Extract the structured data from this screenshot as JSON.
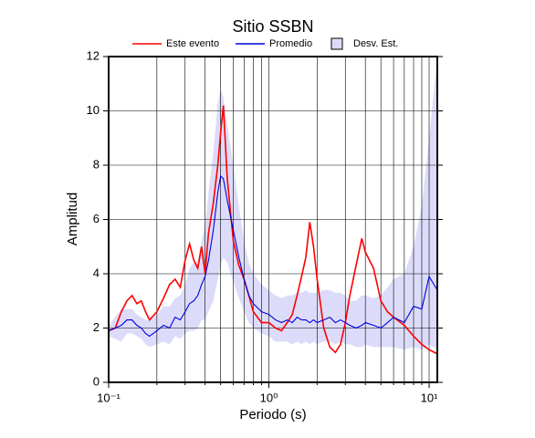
{
  "chart_data": {
    "type": "line",
    "title": "Sitio SSBN",
    "xlabel": "Periodo (s)",
    "ylabel": "Amplitud",
    "xscale": "log",
    "grid": true,
    "legend": "top",
    "x": [
      0.1,
      0.11,
      0.12,
      0.13,
      0.14,
      0.15,
      0.16,
      0.17,
      0.18,
      0.2,
      0.22,
      0.24,
      0.26,
      0.28,
      0.3,
      0.32,
      0.34,
      0.36,
      0.38,
      0.4,
      0.42,
      0.45,
      0.48,
      0.5,
      0.52,
      0.55,
      0.6,
      0.65,
      0.7,
      0.75,
      0.8,
      0.9,
      1.0,
      1.1,
      1.2,
      1.3,
      1.4,
      1.5,
      1.6,
      1.7,
      1.8,
      1.9,
      2.0,
      2.2,
      2.4,
      2.6,
      2.8,
      3.0,
      3.2,
      3.5,
      3.8,
      4.0,
      4.5,
      5.0,
      5.5,
      6,
      7,
      8,
      9,
      10,
      11.25
    ],
    "series": [
      {
        "name": "Este evento",
        "color": "#ff0000",
        "values": [
          1.9,
          2.0,
          2.6,
          3.0,
          3.2,
          2.9,
          3.0,
          2.6,
          2.3,
          2.6,
          3.1,
          3.6,
          3.8,
          3.5,
          4.5,
          5.1,
          4.5,
          4.2,
          5.0,
          4.0,
          5.5,
          6.6,
          8.0,
          9.2,
          10.2,
          7.5,
          5.2,
          4.3,
          3.8,
          3.2,
          2.6,
          2.2,
          2.2,
          2.0,
          1.9,
          2.2,
          2.5,
          3.2,
          3.9,
          4.6,
          5.9,
          5.0,
          3.8,
          2.0,
          1.3,
          1.1,
          1.4,
          2.2,
          3.2,
          4.3,
          5.3,
          4.8,
          4.2,
          3.0,
          2.6,
          2.4,
          2.1,
          1.7,
          1.4,
          1.2,
          1.05
        ]
      },
      {
        "name": "Promedio",
        "color": "#0000dd",
        "values": [
          1.9,
          2.0,
          2.1,
          2.3,
          2.3,
          2.1,
          2.0,
          1.8,
          1.7,
          1.9,
          2.1,
          2.0,
          2.4,
          2.3,
          2.6,
          2.9,
          3.0,
          3.2,
          3.6,
          3.9,
          4.5,
          5.6,
          7.0,
          7.6,
          7.5,
          6.7,
          5.6,
          4.6,
          3.8,
          3.2,
          2.9,
          2.6,
          2.5,
          2.3,
          2.2,
          2.3,
          2.2,
          2.4,
          2.3,
          2.3,
          2.2,
          2.3,
          2.2,
          2.3,
          2.4,
          2.2,
          2.3,
          2.2,
          2.1,
          2.0,
          2.1,
          2.2,
          2.1,
          2.0,
          2.2,
          2.4,
          2.2,
          2.8,
          2.7,
          3.9,
          3.4
        ]
      },
      {
        "name": "Desv. Est.",
        "color": "#dcdcfa",
        "upper": [
          2.1,
          2.4,
          2.7,
          2.7,
          2.7,
          2.5,
          2.4,
          2.3,
          2.3,
          2.5,
          2.8,
          2.8,
          3.1,
          3.2,
          3.6,
          4.2,
          4.4,
          4.5,
          5.2,
          5.8,
          7.0,
          8.5,
          10.3,
          10.8,
          10.5,
          9.5,
          8.0,
          6.5,
          5.2,
          4.4,
          4.0,
          3.6,
          3.4,
          3.2,
          3.1,
          3.2,
          3.2,
          3.3,
          3.3,
          3.4,
          3.3,
          3.3,
          3.3,
          3.4,
          3.4,
          3.3,
          3.3,
          3.2,
          3.0,
          3.0,
          3.2,
          3.2,
          3.1,
          3.2,
          3.5,
          3.8,
          4.0,
          5.0,
          6.5,
          9.0,
          12.0
        ],
        "lower": [
          1.7,
          1.6,
          1.5,
          1.8,
          1.8,
          1.7,
          1.6,
          1.4,
          1.3,
          1.4,
          1.5,
          1.4,
          1.7,
          1.6,
          1.8,
          1.9,
          1.9,
          2.0,
          2.3,
          2.3,
          2.6,
          3.0,
          3.8,
          4.3,
          4.6,
          4.4,
          3.7,
          3.1,
          2.6,
          2.2,
          2.0,
          1.8,
          1.7,
          1.5,
          1.5,
          1.5,
          1.4,
          1.5,
          1.4,
          1.5,
          1.4,
          1.5,
          1.4,
          1.5,
          1.5,
          1.4,
          1.5,
          1.4,
          1.4,
          1.3,
          1.3,
          1.4,
          1.3,
          1.3,
          1.3,
          1.3,
          1.2,
          1.3,
          1.2,
          1.4,
          1.2
        ]
      }
    ],
    "xlim": [
      0.1,
      11.25
    ],
    "ylim": [
      0,
      12
    ],
    "xticks": [
      {
        "value": 0.1,
        "label": "10⁻¹"
      },
      {
        "value": 1,
        "label": "10⁰"
      },
      {
        "value": 10,
        "label": "10¹"
      }
    ],
    "xminorticks": [
      0.2,
      0.3,
      0.4,
      0.5,
      0.6,
      0.7,
      0.8,
      0.9,
      2,
      3,
      4,
      5,
      6,
      7,
      8,
      9
    ],
    "yticks": [
      0,
      2,
      4,
      6,
      8,
      10,
      12
    ]
  }
}
